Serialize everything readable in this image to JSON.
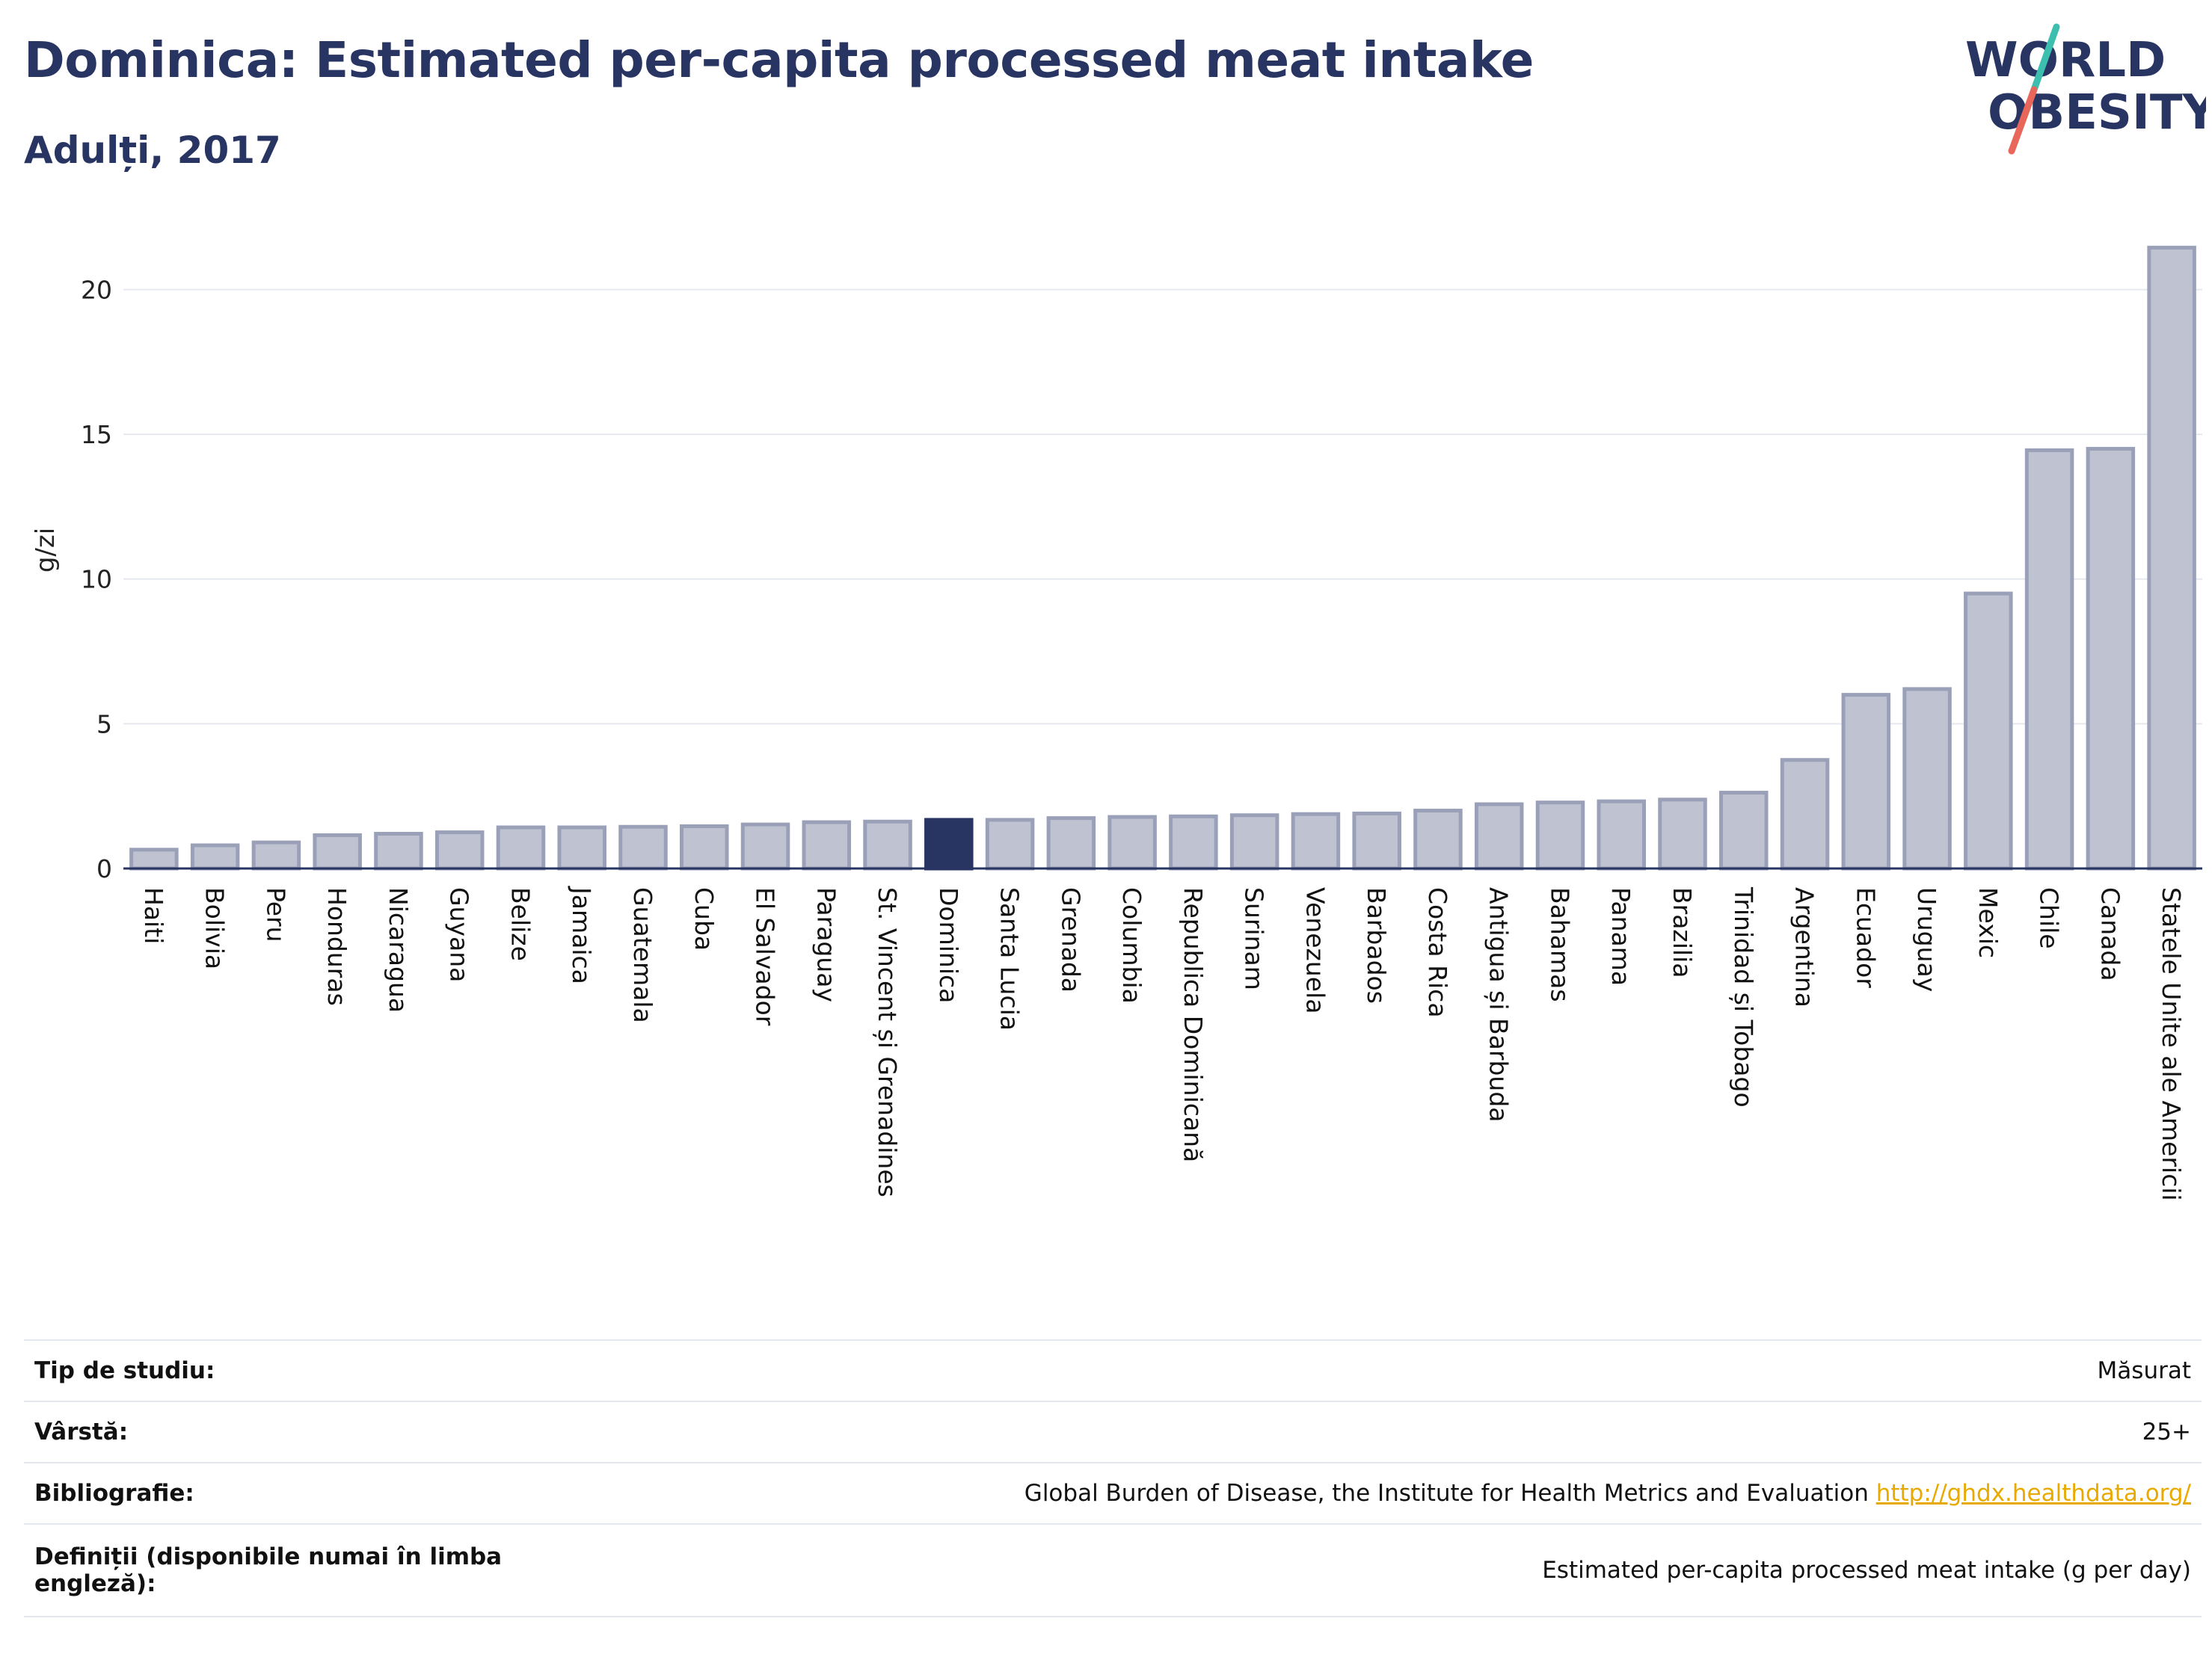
{
  "header": {
    "title": "Dominica: Estimated per-capita processed meat intake",
    "subtitle": "Adulți, 2017"
  },
  "logo": {
    "line1": "WORLD",
    "line2": "OBESITY"
  },
  "colors": {
    "title": "#283562",
    "bar": "#bfc3d1",
    "bar_stroke": "#9aa0b8",
    "highlight": "#283562",
    "grid": "#e6e8ef",
    "logo_teal": "#3dbfb0",
    "logo_coral": "#e8665a"
  },
  "chart_data": {
    "type": "bar",
    "ylabel": "g/zi",
    "xlabel": "",
    "ylim": [
      0,
      22
    ],
    "yticks": [
      0,
      5,
      10,
      15,
      20
    ],
    "grid": true,
    "highlight": "Dominica",
    "categories": [
      "Haiti",
      "Bolivia",
      "Peru",
      "Honduras",
      "Nicaragua",
      "Guyana",
      "Belize",
      "Jamaica",
      "Guatemala",
      "Cuba",
      "El Salvador",
      "Paraguay",
      "St. Vincent și Grenadines",
      "Dominica",
      "Santa Lucia",
      "Grenada",
      "Columbia",
      "Republica Dominicană",
      "Surinam",
      "Venezuela",
      "Barbados",
      "Costa Rica",
      "Antigua și Barbuda",
      "Bahamas",
      "Panama",
      "Brazilia",
      "Trinidad și Tobago",
      "Argentina",
      "Ecuador",
      "Uruguay",
      "Mexic",
      "Chile",
      "Canada",
      "Statele Unite ale Americii"
    ],
    "values": [
      0.65,
      0.8,
      0.9,
      1.15,
      1.2,
      1.25,
      1.42,
      1.42,
      1.44,
      1.46,
      1.52,
      1.6,
      1.62,
      1.68,
      1.68,
      1.74,
      1.78,
      1.8,
      1.84,
      1.88,
      1.9,
      2.0,
      2.22,
      2.28,
      2.32,
      2.38,
      2.62,
      3.75,
      6.0,
      6.2,
      9.5,
      14.45,
      14.5,
      21.45
    ]
  },
  "info_table": [
    {
      "key": "Tip de studiu:",
      "value": "Măsurat"
    },
    {
      "key": "Vârstă:",
      "value": "25+"
    },
    {
      "key": "Bibliografie:",
      "value": "Global Burden of Disease, the Institute for Health Metrics and Evaluation",
      "link": "http://ghdx.healthdata.org/"
    },
    {
      "key": "Definiții (disponibile numai în limba engleză):",
      "value": "Estimated per-capita processed meat intake (g per day)"
    }
  ]
}
